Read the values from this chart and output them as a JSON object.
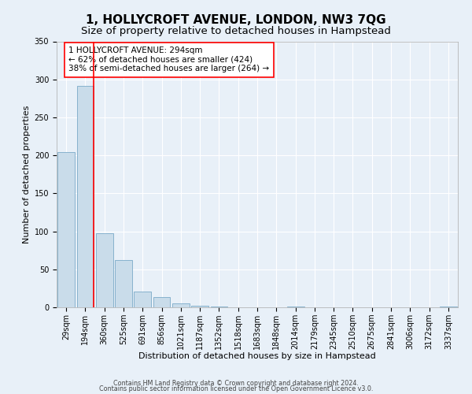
{
  "title": "1, HOLLYCROFT AVENUE, LONDON, NW3 7QG",
  "subtitle": "Size of property relative to detached houses in Hampstead",
  "xlabel": "Distribution of detached houses by size in Hampstead",
  "ylabel": "Number of detached properties",
  "bin_labels": [
    "29sqm",
    "194sqm",
    "360sqm",
    "525sqm",
    "691sqm",
    "856sqm",
    "1021sqm",
    "1187sqm",
    "1352sqm",
    "1518sqm",
    "1683sqm",
    "1848sqm",
    "2014sqm",
    "2179sqm",
    "2345sqm",
    "2510sqm",
    "2675sqm",
    "2841sqm",
    "3006sqm",
    "3172sqm",
    "3337sqm"
  ],
  "bar_heights": [
    204,
    291,
    98,
    62,
    21,
    13,
    5,
    2,
    1,
    0,
    0,
    0,
    1,
    0,
    0,
    0,
    0,
    0,
    0,
    0,
    1
  ],
  "bar_color": "#c9dcea",
  "bar_edge_color": "#7aaac8",
  "vline_color": "red",
  "vline_x_index": 1,
  "annotation_title": "1 HOLLYCROFT AVENUE: 294sqm",
  "annotation_line1": "← 62% of detached houses are smaller (424)",
  "annotation_line2": "38% of semi-detached houses are larger (264) →",
  "annotation_box_color": "white",
  "annotation_box_edge": "red",
  "ylim": [
    0,
    350
  ],
  "yticks": [
    0,
    50,
    100,
    150,
    200,
    250,
    300,
    350
  ],
  "footer1": "Contains HM Land Registry data © Crown copyright and database right 2024.",
  "footer2": "Contains public sector information licensed under the Open Government Licence v3.0.",
  "bg_color": "#e8f0f8",
  "grid_color": "#ffffff",
  "title_fontsize": 11,
  "subtitle_fontsize": 9.5,
  "axis_label_fontsize": 8,
  "tick_fontsize": 7,
  "annotation_fontsize": 7.5,
  "footer_fontsize": 5.8
}
